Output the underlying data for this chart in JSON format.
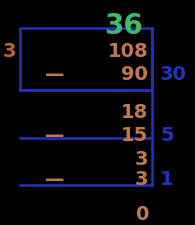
{
  "title": "36",
  "title_color": "#3dba6e",
  "divisor": "3",
  "divisor_color": "#c0632a",
  "row_numbers": [
    "108",
    "90",
    "18",
    "15",
    "3",
    "3",
    "0"
  ],
  "row_minuses": [
    false,
    true,
    false,
    true,
    false,
    true,
    false
  ],
  "row_colors": [
    "#c07850",
    "#c07850",
    "#c07850",
    "#c07850",
    "#c07850",
    "#c07850",
    "#c07850"
  ],
  "partial_quotients": [
    "30",
    "5",
    "1"
  ],
  "pq_rows": [
    1,
    3,
    5
  ],
  "pq_color": "#2233bb",
  "line_color": "#2233bb",
  "box_color": "#2233bb",
  "bg_color": "#000000",
  "fig_width": 1.95,
  "fig_height": 2.25,
  "dpi": 100,
  "num_fontsize": 14,
  "title_fontsize": 20,
  "divisor_fontsize": 14,
  "pq_fontsize": 14
}
